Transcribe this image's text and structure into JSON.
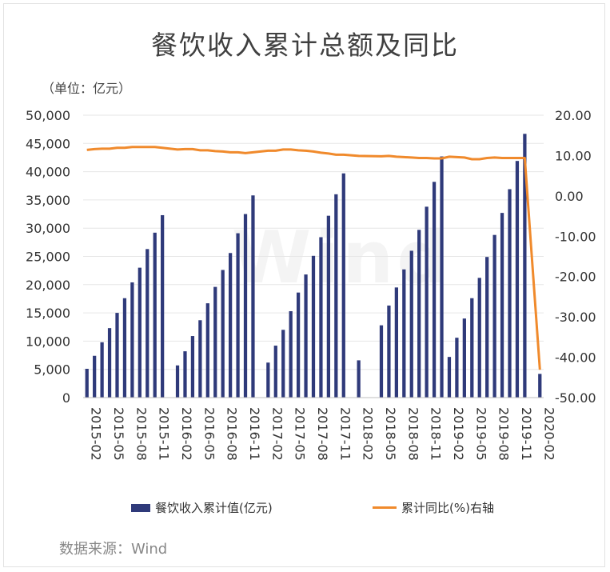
{
  "title": "餐饮收入累计总额及同比",
  "unit_label": "（单位：亿元）",
  "source": "数据来源：Wind",
  "watermark": "Wind",
  "colors": {
    "bar": "#2f3a7a",
    "line": "#f08a2c",
    "grid": "#e6e6e6",
    "text": "#333333"
  },
  "chart_data": {
    "type": "bar",
    "x_tick_labels": [
      "2015-02",
      "2015-05",
      "2015-08",
      "2015-11",
      "2016-02",
      "2016-05",
      "2016-08",
      "2016-11",
      "2017-02",
      "2017-05",
      "2017-08",
      "2017-11",
      "2018-02",
      "2018-05",
      "2018-08",
      "2018-11",
      "2019-02",
      "2019-05",
      "2019-08",
      "2019-11",
      "2020-02"
    ],
    "categories": [
      "2015-02",
      "2015-03",
      "2015-04",
      "2015-05",
      "2015-06",
      "2015-07",
      "2015-08",
      "2015-09",
      "2015-10",
      "2015-11",
      "2015-12",
      "2016-01",
      "2016-02",
      "2016-03",
      "2016-04",
      "2016-05",
      "2016-06",
      "2016-07",
      "2016-08",
      "2016-09",
      "2016-10",
      "2016-11",
      "2016-12",
      "2017-01",
      "2017-02",
      "2017-03",
      "2017-04",
      "2017-05",
      "2017-06",
      "2017-07",
      "2017-08",
      "2017-09",
      "2017-10",
      "2017-11",
      "2017-12",
      "2018-01",
      "2018-02",
      "2018-03",
      "2018-04",
      "2018-05",
      "2018-06",
      "2018-07",
      "2018-08",
      "2018-09",
      "2018-10",
      "2018-11",
      "2018-12",
      "2019-01",
      "2019-02",
      "2019-03",
      "2019-04",
      "2019-05",
      "2019-06",
      "2019-07",
      "2019-08",
      "2019-09",
      "2019-10",
      "2019-11",
      "2019-12",
      "2020-01",
      "2020-02"
    ],
    "series": [
      {
        "name": "餐饮收入累计值(亿元)",
        "type": "bar",
        "axis": "left",
        "values": [
          5100,
          7400,
          9800,
          12300,
          15000,
          17600,
          20400,
          23000,
          26300,
          29200,
          32300,
          null,
          5700,
          8200,
          10900,
          13700,
          16700,
          19600,
          22600,
          25600,
          29100,
          32500,
          35800,
          null,
          6200,
          9200,
          12000,
          15300,
          18600,
          21800,
          25100,
          28400,
          32200,
          36000,
          39700,
          null,
          6600,
          null,
          null,
          12800,
          16300,
          19500,
          22700,
          26000,
          29700,
          33800,
          38200,
          42700,
          7200,
          10600,
          14000,
          17600,
          21200,
          24900,
          28800,
          32700,
          36900,
          41900,
          46700,
          null,
          4200
        ]
      },
      {
        "name": "累计同比(%)右轴",
        "type": "line",
        "axis": "right",
        "values": [
          11.4,
          11.6,
          11.7,
          11.7,
          11.9,
          11.9,
          12.1,
          12.1,
          12.1,
          12.1,
          11.9,
          null,
          11.5,
          11.6,
          11.6,
          11.3,
          11.3,
          11.1,
          11.0,
          10.8,
          10.8,
          10.6,
          10.8,
          null,
          11.2,
          11.2,
          11.5,
          11.5,
          11.3,
          11.2,
          11.0,
          10.7,
          10.5,
          10.2,
          10.2,
          null,
          9.9,
          null,
          null,
          9.8,
          9.9,
          9.7,
          9.6,
          9.5,
          9.4,
          9.4,
          9.3,
          9.3,
          9.7,
          9.6,
          9.5,
          9.1,
          9.1,
          9.4,
          9.5,
          9.4,
          9.4,
          9.4,
          9.4,
          null,
          -43.1
        ]
      }
    ],
    "y_left": {
      "min": 0,
      "max": 50000,
      "ticks": [
        0,
        5000,
        10000,
        15000,
        20000,
        25000,
        30000,
        35000,
        40000,
        45000,
        50000
      ],
      "tick_labels": [
        "0",
        "5,000",
        "10,000",
        "15,000",
        "20,000",
        "25,000",
        "30,000",
        "35,000",
        "40,000",
        "45,000",
        "50,000"
      ]
    },
    "y_right": {
      "min": -50,
      "max": 20,
      "ticks": [
        -50,
        -40,
        -30,
        -20,
        -10,
        0,
        10,
        20
      ],
      "tick_labels": [
        "-50.00",
        "-40.00",
        "-30.00",
        "-20.00",
        "-10.00",
        "0.00",
        "10.00",
        "20.00"
      ]
    },
    "grid": true,
    "legend_position": "bottom"
  }
}
